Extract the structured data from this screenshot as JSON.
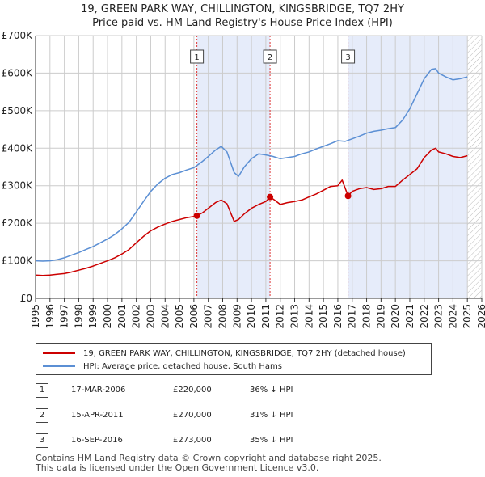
{
  "title_line1": "19, GREEN PARK WAY, CHILLINGTON, KINGSBRIDGE, TQ7 2HY",
  "title_line2": "Price paid vs. HM Land Registry's House Price Index (HPI)",
  "colors": {
    "property": "#cc0000",
    "hpi": "#5b8fd4",
    "shade": "#e6ecfa",
    "marker": "#dd3333",
    "grid": "#cccccc"
  },
  "legend": {
    "property_label": "19, GREEN PARK WAY, CHILLINGTON, KINGSBRIDGE, TQ7 2HY (detached house)",
    "hpi_label": "HPI: Average price, detached house, South Hams"
  },
  "transactions": [
    {
      "num": "1",
      "date": "17-MAR-2006",
      "price": "£220,000",
      "hpi": "36% ↓ HPI"
    },
    {
      "num": "2",
      "date": "15-APR-2011",
      "price": "£270,000",
      "hpi": "31% ↓ HPI"
    },
    {
      "num": "3",
      "date": "16-SEP-2016",
      "price": "£273,000",
      "hpi": "35% ↓ HPI"
    }
  ],
  "footer_line1": "Contains HM Land Registry data © Crown copyright and database right 2025.",
  "footer_line2": "This data is licensed under the Open Government Licence v3.0.",
  "chart_data": {
    "type": "line",
    "title": "19, GREEN PARK WAY, CHILLINGTON, KINGSBRIDGE, TQ7 2HY — Price paid vs. HM Land Registry's House Price Index (HPI)",
    "xlim": [
      1995,
      2026
    ],
    "ylim": [
      0,
      700000
    ],
    "x_ticks": [
      1995,
      1996,
      1997,
      1998,
      1999,
      2000,
      2001,
      2002,
      2003,
      2004,
      2005,
      2006,
      2007,
      2008,
      2009,
      2010,
      2011,
      2012,
      2013,
      2014,
      2015,
      2016,
      2017,
      2018,
      2019,
      2020,
      2021,
      2022,
      2023,
      2024,
      2025,
      2026
    ],
    "y_ticks": [
      0,
      100000,
      200000,
      300000,
      400000,
      500000,
      600000,
      700000
    ],
    "y_tick_labels": [
      "£0",
      "£100K",
      "£200K",
      "£300K",
      "£400K",
      "£500K",
      "£600K",
      "£700K"
    ],
    "shaded_spans": [
      [
        2006.21,
        2011.29
      ],
      [
        2016.71,
        2025.0
      ]
    ],
    "future_hatch_from": 2025.0,
    "sale_markers": [
      {
        "label": "1",
        "x": 2006.21,
        "y": 220000
      },
      {
        "label": "2",
        "x": 2011.29,
        "y": 270000
      },
      {
        "label": "3",
        "x": 2016.71,
        "y": 273000
      }
    ],
    "series": [
      {
        "name": "19, GREEN PARK WAY, CHILLINGTON, KINGSBRIDGE, TQ7 2HY (detached house)",
        "x": [
          1995,
          1995.5,
          1996,
          1996.5,
          1997,
          1997.5,
          1998,
          1998.5,
          1999,
          1999.5,
          2000,
          2000.5,
          2001,
          2001.5,
          2002,
          2002.5,
          2003,
          2003.5,
          2004,
          2004.5,
          2005,
          2005.5,
          2006,
          2006.21,
          2006.6,
          2007,
          2007.5,
          2007.9,
          2008.3,
          2008.8,
          2009.1,
          2009.5,
          2010,
          2010.5,
          2011,
          2011.29,
          2011.6,
          2012,
          2012.5,
          2013,
          2013.5,
          2014,
          2014.5,
          2015,
          2015.5,
          2016,
          2016.3,
          2016.71,
          2017,
          2017.5,
          2018,
          2018.5,
          2019,
          2019.5,
          2020,
          2020.5,
          2021,
          2021.5,
          2022,
          2022.5,
          2022.8,
          2023,
          2023.5,
          2024,
          2024.5,
          2025
        ],
        "values": [
          62000,
          61000,
          62000,
          64000,
          66000,
          70000,
          75000,
          80000,
          86000,
          93000,
          100000,
          108000,
          118000,
          130000,
          148000,
          165000,
          180000,
          190000,
          198000,
          205000,
          210000,
          215000,
          218000,
          220000,
          228000,
          240000,
          255000,
          262000,
          252000,
          205000,
          210000,
          225000,
          240000,
          250000,
          258000,
          270000,
          262000,
          250000,
          255000,
          258000,
          262000,
          270000,
          278000,
          288000,
          298000,
          300000,
          315000,
          273000,
          285000,
          292000,
          295000,
          290000,
          292000,
          298000,
          298000,
          315000,
          330000,
          345000,
          375000,
          395000,
          400000,
          390000,
          385000,
          378000,
          375000,
          380000
        ]
      },
      {
        "name": "HPI: Average price, detached house, South Hams",
        "x": [
          1995,
          1995.5,
          1996,
          1996.5,
          1997,
          1997.5,
          1998,
          1998.5,
          1999,
          1999.5,
          2000,
          2000.5,
          2001,
          2001.5,
          2002,
          2002.5,
          2003,
          2003.5,
          2004,
          2004.5,
          2005,
          2005.5,
          2006,
          2006.5,
          2007,
          2007.5,
          2007.9,
          2008.3,
          2008.8,
          2009.1,
          2009.5,
          2010,
          2010.5,
          2011,
          2011.5,
          2012,
          2012.5,
          2013,
          2013.5,
          2014,
          2014.5,
          2015,
          2015.5,
          2016,
          2016.5,
          2017,
          2017.5,
          2018,
          2018.5,
          2019,
          2019.5,
          2020,
          2020.5,
          2021,
          2021.5,
          2022,
          2022.5,
          2022.8,
          2023,
          2023.5,
          2024,
          2024.5,
          2025
        ],
        "values": [
          100000,
          99000,
          100000,
          103000,
          108000,
          115000,
          122000,
          130000,
          138000,
          148000,
          158000,
          170000,
          185000,
          203000,
          230000,
          258000,
          285000,
          305000,
          320000,
          330000,
          335000,
          342000,
          348000,
          362000,
          378000,
          395000,
          405000,
          390000,
          335000,
          325000,
          350000,
          372000,
          385000,
          382000,
          378000,
          372000,
          375000,
          378000,
          385000,
          390000,
          398000,
          405000,
          412000,
          420000,
          418000,
          425000,
          432000,
          440000,
          445000,
          448000,
          452000,
          455000,
          475000,
          505000,
          545000,
          585000,
          610000,
          612000,
          600000,
          590000,
          582000,
          585000,
          590000
        ]
      }
    ]
  }
}
